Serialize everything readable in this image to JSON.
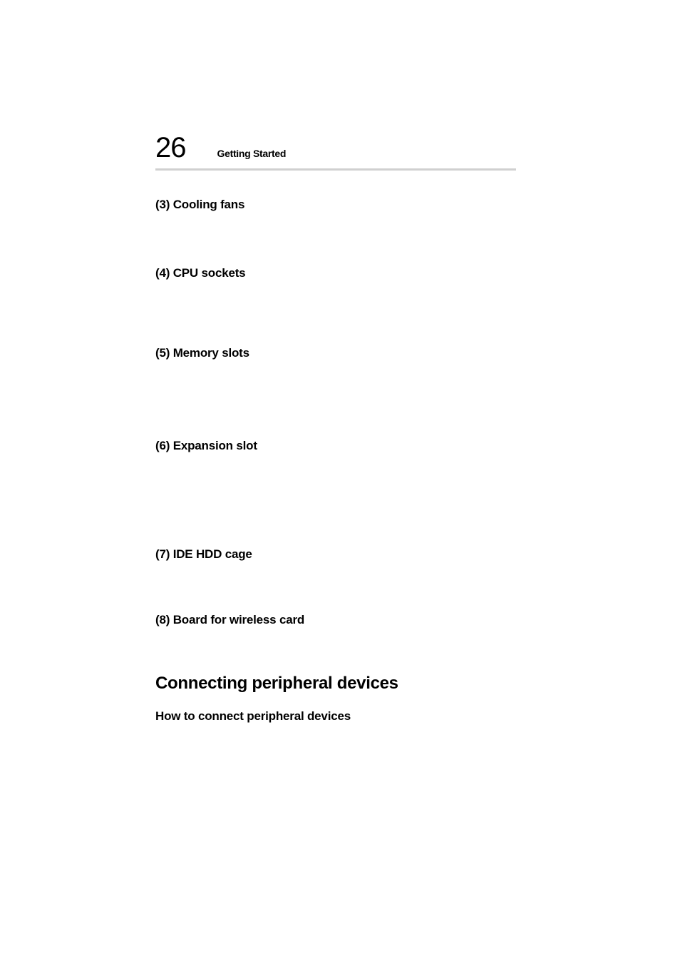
{
  "header": {
    "page_number": "26",
    "title": "Getting Started"
  },
  "sections": {
    "item3": "(3) Cooling fans",
    "item4": "(4) CPU sockets",
    "item5": "(5) Memory slots",
    "item6": "(6) Expansion slot",
    "item7": "(7) IDE HDD cage",
    "item8": "(8) Board for wireless card"
  },
  "main": {
    "heading": "Connecting peripheral devices",
    "subheading": "How to connect peripheral devices"
  },
  "styling": {
    "background_color": "#ffffff",
    "text_color": "#000000",
    "divider_color": "#d0d0d0",
    "page_number_fontsize": 40,
    "header_title_fontsize": 14,
    "section_item_fontsize": 17,
    "main_heading_fontsize": 24,
    "sub_heading_fontsize": 17,
    "font_family": "Arial, Helvetica, sans-serif"
  }
}
